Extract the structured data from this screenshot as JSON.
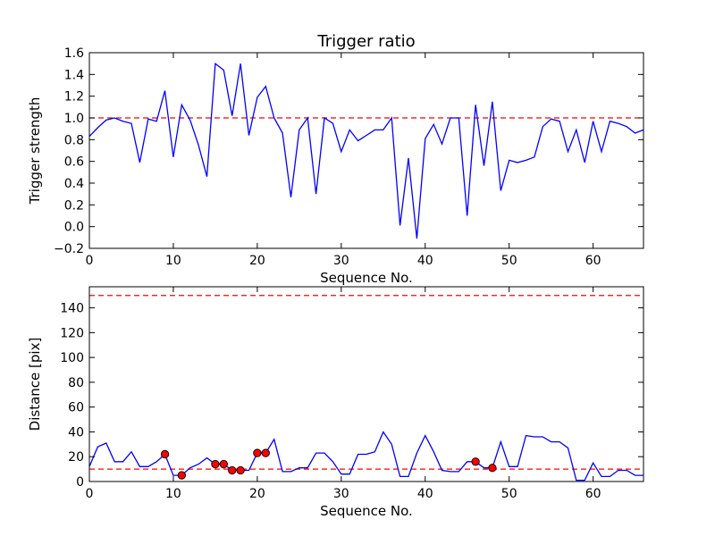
{
  "chart_data": [
    {
      "type": "line",
      "title": "Trigger ratio",
      "xlabel": "Sequence No.",
      "ylabel": "Trigger strength",
      "xlim": [
        0,
        66
      ],
      "ylim": [
        -0.2,
        1.6
      ],
      "xticks": [
        "0",
        "10",
        "20",
        "30",
        "40",
        "50",
        "60"
      ],
      "yticks": [
        "−0.2",
        "0.0",
        "0.2",
        "0.4",
        "0.6",
        "0.8",
        "1.0",
        "1.2",
        "1.4",
        "1.6"
      ],
      "grid": false,
      "line_color": "#0000ff",
      "ref_line_color": "#ff0000",
      "ref_lines": [
        1.0
      ],
      "x": [
        0,
        1,
        2,
        3,
        4,
        5,
        6,
        7,
        8,
        9,
        10,
        11,
        12,
        13,
        14,
        15,
        16,
        17,
        18,
        19,
        20,
        21,
        22,
        23,
        24,
        25,
        26,
        27,
        28,
        29,
        30,
        31,
        32,
        33,
        34,
        35,
        36,
        37,
        38,
        39,
        40,
        41,
        42,
        43,
        44,
        45,
        46,
        47,
        48,
        49,
        50,
        51,
        52,
        53,
        54,
        55,
        56,
        57,
        58,
        59,
        60,
        61,
        62,
        63,
        64,
        65,
        66
      ],
      "y": [
        0.83,
        0.91,
        0.98,
        1.0,
        0.97,
        0.95,
        0.59,
        0.99,
        0.97,
        1.25,
        0.64,
        1.12,
        0.98,
        0.75,
        0.46,
        1.5,
        1.44,
        1.02,
        1.5,
        0.84,
        1.19,
        1.29,
        1.0,
        0.86,
        0.27,
        0.89,
        1.0,
        0.3,
        1.0,
        0.95,
        0.69,
        0.89,
        0.79,
        0.84,
        0.89,
        0.89,
        1.0,
        0.01,
        0.63,
        -0.11,
        0.81,
        0.94,
        0.76,
        1.0,
        1.0,
        0.1,
        1.12,
        0.56,
        1.15,
        0.33,
        0.61,
        0.59,
        0.61,
        0.64,
        0.92,
        0.99,
        0.97,
        0.69,
        0.89,
        0.59,
        0.97,
        0.69,
        0.97,
        0.95,
        0.92,
        0.86,
        0.89
      ]
    },
    {
      "type": "line",
      "title": "",
      "xlabel": "Sequence No.",
      "ylabel": "Distance [pix]",
      "xlim": [
        0,
        66
      ],
      "ylim": [
        0,
        157
      ],
      "xticks": [
        "0",
        "10",
        "20",
        "30",
        "40",
        "50",
        "60"
      ],
      "yticks": [
        "0",
        "20",
        "40",
        "60",
        "80",
        "100",
        "120",
        "140"
      ],
      "grid": false,
      "line_color": "#0000ff",
      "ref_line_color": "#ff0000",
      "marker_color": "#ff0000",
      "ref_lines": [
        150,
        10
      ],
      "x": [
        0,
        1,
        2,
        3,
        4,
        5,
        6,
        7,
        8,
        9,
        10,
        11,
        12,
        13,
        14,
        15,
        16,
        17,
        18,
        19,
        20,
        21,
        22,
        23,
        24,
        25,
        26,
        27,
        28,
        29,
        30,
        31,
        32,
        33,
        34,
        35,
        36,
        37,
        38,
        39,
        40,
        41,
        42,
        43,
        44,
        45,
        46,
        47,
        48,
        49,
        50,
        51,
        52,
        53,
        54,
        55,
        56,
        57,
        58,
        59,
        60,
        61,
        62,
        63,
        64,
        65,
        66
      ],
      "y": [
        12,
        28,
        31,
        16,
        16,
        24,
        12,
        12,
        16,
        22,
        5,
        5,
        11,
        14,
        19,
        14,
        14,
        9,
        9,
        9,
        23,
        23,
        34,
        8,
        8,
        11,
        11,
        23,
        23,
        16,
        6,
        6,
        22,
        22,
        24,
        40,
        30,
        4,
        4,
        23,
        37,
        24,
        9,
        8,
        8,
        16,
        16,
        11,
        11,
        32,
        12,
        12,
        37,
        36,
        36,
        32,
        32,
        27,
        1,
        1,
        15,
        4,
        4,
        9,
        9,
        5,
        5
      ],
      "highlight_points": [
        {
          "x": 9,
          "y": 22
        },
        {
          "x": 11,
          "y": 5
        },
        {
          "x": 15,
          "y": 14
        },
        {
          "x": 16,
          "y": 14
        },
        {
          "x": 17,
          "y": 9
        },
        {
          "x": 18,
          "y": 9
        },
        {
          "x": 20,
          "y": 23
        },
        {
          "x": 21,
          "y": 23
        },
        {
          "x": 46,
          "y": 16
        },
        {
          "x": 48,
          "y": 11
        }
      ]
    }
  ]
}
